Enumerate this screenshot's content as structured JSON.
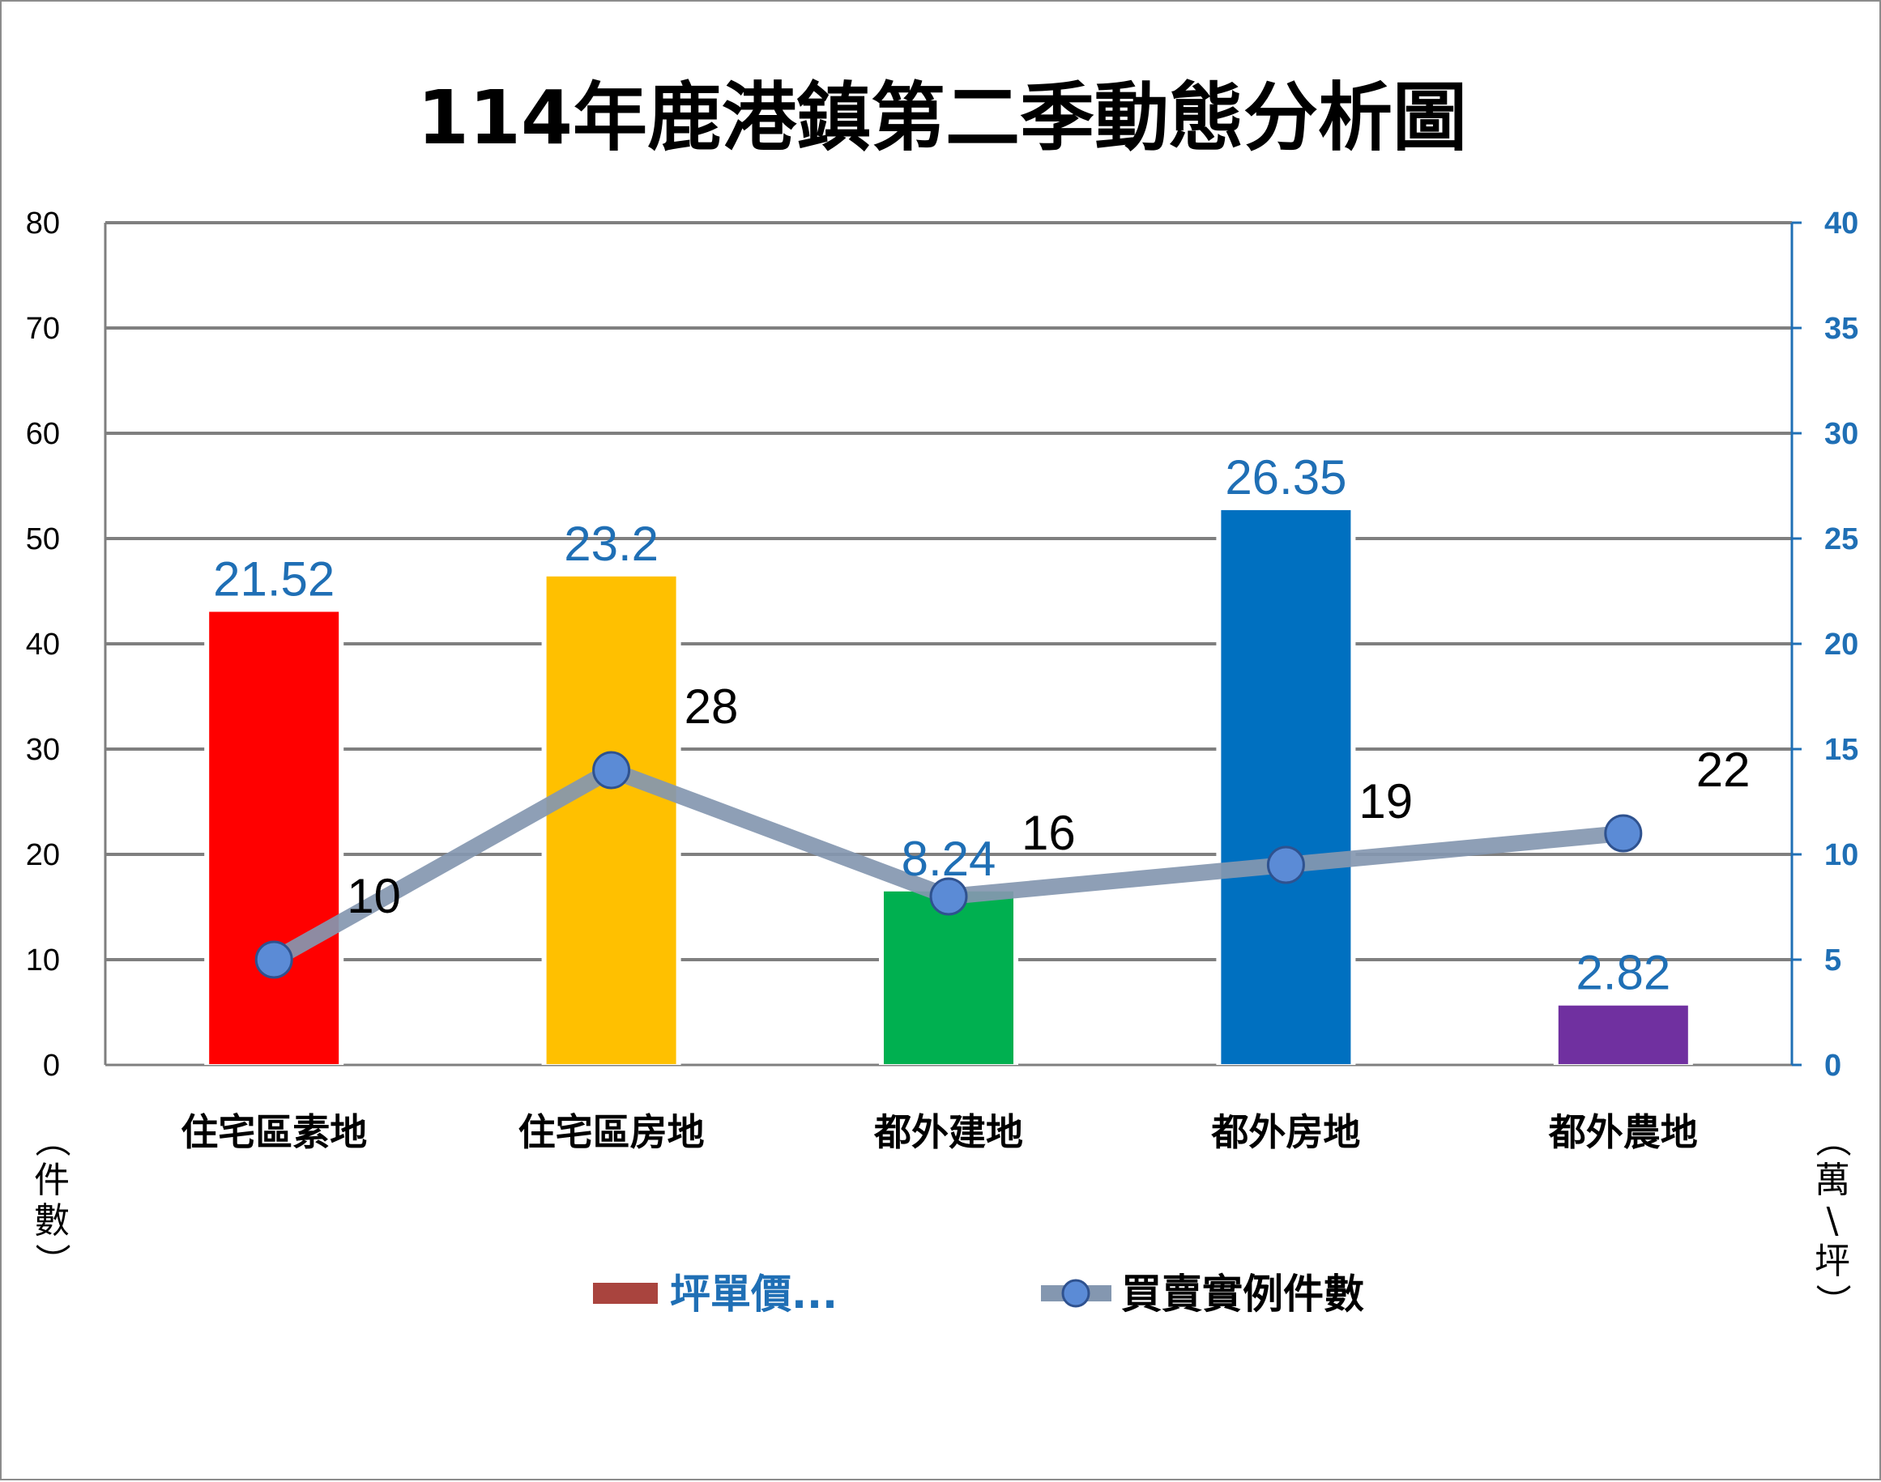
{
  "chart_data": {
    "type": "bar",
    "title": "114年鹿港鎮第二季動態分析圖",
    "categories": [
      "住宅區素地",
      "住宅區房地",
      "都外建地",
      "都外房地",
      "都外農地"
    ],
    "ylabel_left": "（件數）",
    "ylabel_right": "（萬/坪）",
    "ylim_left": [
      0,
      80
    ],
    "ylim_right": [
      0,
      40
    ],
    "yticks_left": [
      "0",
      "10",
      "20",
      "30",
      "40",
      "50",
      "60",
      "70",
      "80"
    ],
    "yticks_right": [
      "0",
      "5",
      "10",
      "15",
      "20",
      "25",
      "30",
      "35",
      "40"
    ],
    "grid": true,
    "legend_position": "bottom",
    "series": [
      {
        "name": "坪單價...",
        "type": "bar",
        "axis": "right",
        "values": [
          21.52,
          23.2,
          8.24,
          26.35,
          2.82
        ],
        "labels": [
          "21.52",
          "23.2",
          "8.24",
          "26.35",
          "2.82"
        ],
        "colors": [
          "#ff0000",
          "#ffc000",
          "#00b050",
          "#0070c0",
          "#7030a0"
        ],
        "legend_color": "#a9443e",
        "label_color": "#1f6fb5"
      },
      {
        "name": "買賣實例件數",
        "type": "line",
        "axis": "left",
        "values": [
          10,
          28,
          16,
          19,
          22
        ],
        "labels": [
          "10",
          "28",
          "16",
          "19",
          "22"
        ],
        "line_color": "#8497b0",
        "marker_color": "#5b8bd6",
        "marker_edge": "#2f528f"
      }
    ]
  }
}
